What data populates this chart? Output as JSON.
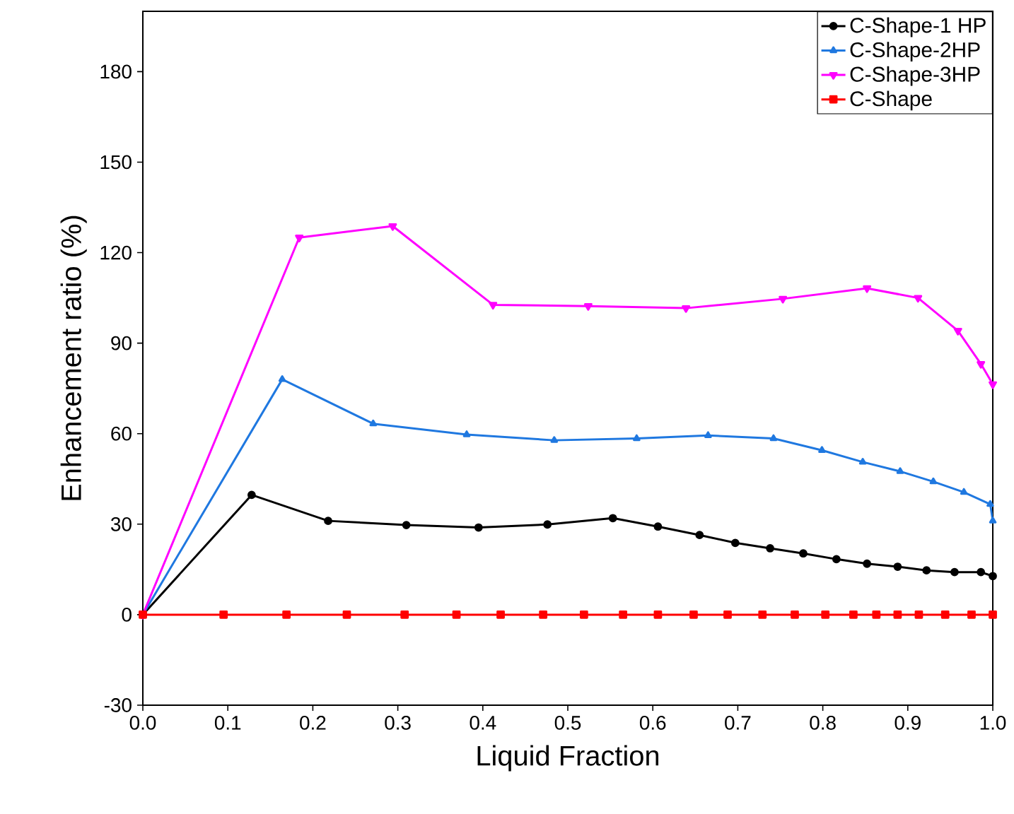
{
  "chart_data": {
    "type": "line",
    "xlabel": "Liquid Fraction",
    "ylabel": "Enhancement ratio (%)",
    "xlim": [
      0,
      1
    ],
    "ylim": [
      -30,
      200
    ],
    "xticks": [
      {
        "value": 0,
        "label": "0.0"
      },
      0.1,
      0.2,
      0.3,
      0.4,
      0.5,
      0.6,
      0.7,
      0.8,
      0.9,
      {
        "value": 1,
        "label": "1.0"
      }
    ],
    "yticks": [
      -30,
      0,
      30,
      60,
      90,
      120,
      150,
      180
    ],
    "grid": false,
    "legend": "top right",
    "line_style": "solid",
    "series": [
      {
        "name": "C-Shape-1 HP",
        "color": "#000000",
        "marker": "circle",
        "x": [
          0,
          0.128,
          0.218,
          0.31,
          0.395,
          0.476,
          0.553,
          0.606,
          0.655,
          0.697,
          0.738,
          0.777,
          0.816,
          0.852,
          0.888,
          0.922,
          0.955,
          0.986,
          1.0
        ],
        "values": [
          0,
          39.7,
          31.1,
          29.7,
          28.9,
          29.9,
          32.0,
          29.2,
          26.4,
          23.8,
          22.0,
          20.3,
          18.4,
          16.9,
          15.9,
          14.7,
          14.1,
          14.1,
          12.8
        ]
      },
      {
        "name": "C-Shape-2HP",
        "color": "#1f78e0",
        "marker": "triangle",
        "x": [
          0,
          0.164,
          0.271,
          0.381,
          0.484,
          0.581,
          0.665,
          0.742,
          0.799,
          0.847,
          0.891,
          0.93,
          0.966,
          0.997,
          1.0
        ],
        "values": [
          0,
          78.0,
          63.3,
          59.7,
          57.8,
          58.4,
          59.4,
          58.4,
          54.5,
          50.6,
          47.5,
          44.1,
          40.6,
          36.6,
          31.1
        ]
      },
      {
        "name": "C-Shape-3HP",
        "color": "#ff00ff",
        "marker": "triangle down",
        "x": [
          0,
          0.184,
          0.294,
          0.412,
          0.524,
          0.639,
          0.753,
          0.852,
          0.912,
          0.959,
          0.986,
          1.0
        ],
        "values": [
          0,
          125.0,
          128.8,
          102.7,
          102.3,
          101.6,
          104.7,
          108.2,
          105.0,
          94.1,
          83.1,
          76.4
        ]
      },
      {
        "name": "C-Shape",
        "color": "#ff0000",
        "marker": "square",
        "x": [
          0,
          0.095,
          0.169,
          0.24,
          0.308,
          0.369,
          0.421,
          0.471,
          0.519,
          0.565,
          0.606,
          0.648,
          0.688,
          0.729,
          0.767,
          0.803,
          0.836,
          0.863,
          0.888,
          0.913,
          0.944,
          0.975,
          1.0
        ],
        "values": [
          0,
          0,
          0,
          0,
          0,
          0,
          0,
          0,
          0,
          0,
          0,
          0,
          0,
          0,
          0,
          0,
          0,
          0,
          0,
          0,
          0,
          0,
          0
        ]
      }
    ]
  }
}
